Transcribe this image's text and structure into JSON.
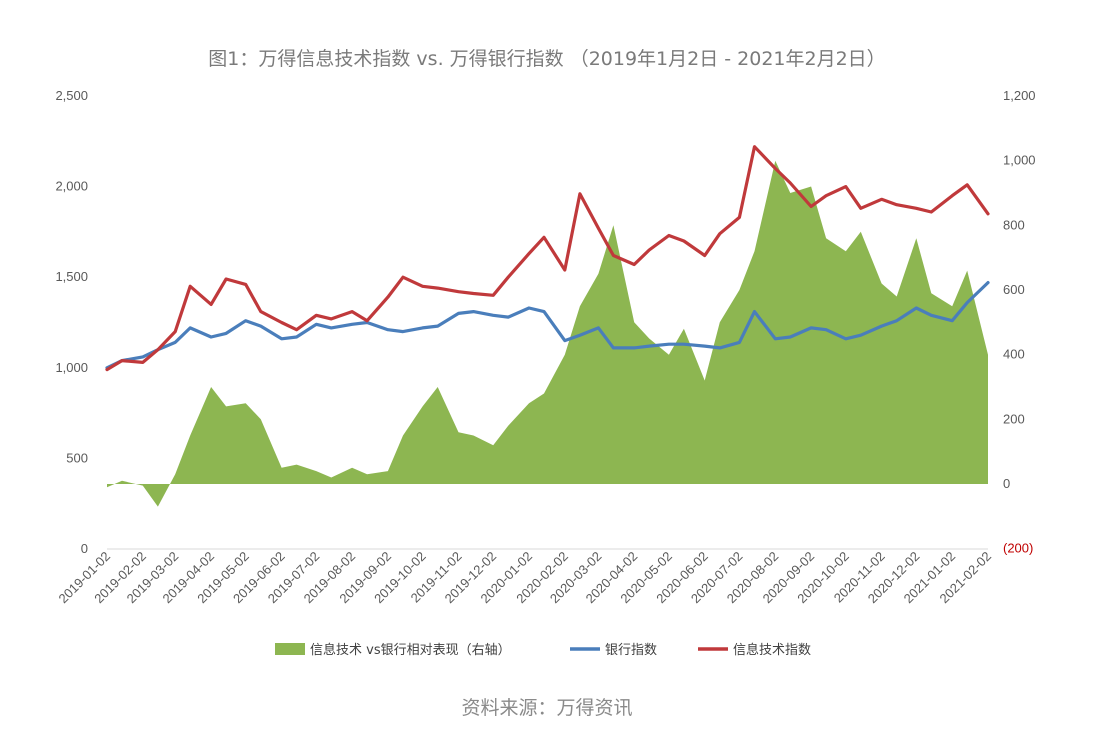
{
  "title": "图1：万得信息技术指数 vs. 万得银行指数 （2019年1月2日 - 2021年2月2日）",
  "source": "资料来源：万得资讯",
  "colors": {
    "it_index": "#c0393b",
    "bank_index": "#4a7ebb",
    "relative": "#8db651",
    "negative_tick": "#c00000"
  },
  "chart_data": {
    "type": "line",
    "title": "图1：万得信息技术指数 vs. 万得银行指数 （2019年1月2日 - 2021年2月2日）",
    "left_axis": {
      "range": [
        0,
        2500
      ],
      "ticks": [
        "0",
        "500",
        "1,000",
        "1,500",
        "2,000",
        "2,500"
      ]
    },
    "right_axis": {
      "range": [
        -200,
        1200
      ],
      "ticks": [
        "(200)",
        "0",
        "200",
        "400",
        "600",
        "800",
        "1,000",
        "1,200"
      ]
    },
    "grid": false,
    "legend_position": "bottom",
    "x": [
      "2019-01-02",
      "2019-02-02",
      "2019-03-02",
      "2019-04-02",
      "2019-05-02",
      "2019-06-02",
      "2019-07-02",
      "2019-08-02",
      "2019-09-02",
      "2019-10-02",
      "2019-11-02",
      "2019-12-02",
      "2020-01-02",
      "2020-02-02",
      "2020-03-02",
      "2020-04-02",
      "2020-05-02",
      "2020-06-02",
      "2020-07-02",
      "2020-08-02",
      "2020-09-02",
      "2020-10-02",
      "2020-11-02",
      "2020-12-02",
      "2021-01-02",
      "2021-02-02"
    ],
    "series": [
      {
        "name": "信息技术 vs银行相对表现（右轴）",
        "type": "area",
        "axis": "right",
        "x": [
          "2019-01-02",
          "2019-01-15",
          "2019-02-02",
          "2019-02-15",
          "2019-03-02",
          "2019-03-15",
          "2019-04-02",
          "2019-04-15",
          "2019-05-02",
          "2019-05-15",
          "2019-06-02",
          "2019-06-15",
          "2019-07-02",
          "2019-07-15",
          "2019-08-02",
          "2019-08-15",
          "2019-09-02",
          "2019-09-15",
          "2019-10-02",
          "2019-10-15",
          "2019-11-02",
          "2019-11-15",
          "2019-12-02",
          "2019-12-15",
          "2020-01-02",
          "2020-01-15",
          "2020-02-02",
          "2020-02-15",
          "2020-03-02",
          "2020-03-15",
          "2020-04-02",
          "2020-04-15",
          "2020-05-02",
          "2020-05-15",
          "2020-06-02",
          "2020-06-15",
          "2020-07-02",
          "2020-07-15",
          "2020-08-02",
          "2020-08-15",
          "2020-09-02",
          "2020-09-15",
          "2020-10-02",
          "2020-10-15",
          "2020-11-02",
          "2020-11-15",
          "2020-12-02",
          "2020-12-15",
          "2021-01-02",
          "2021-01-15",
          "2021-02-02"
        ],
        "values": [
          -10,
          10,
          -5,
          -70,
          30,
          150,
          300,
          240,
          250,
          200,
          50,
          60,
          40,
          20,
          50,
          30,
          40,
          150,
          240,
          300,
          160,
          150,
          120,
          180,
          250,
          280,
          400,
          550,
          650,
          800,
          500,
          450,
          400,
          480,
          320,
          500,
          600,
          720,
          1000,
          900,
          920,
          760,
          720,
          780,
          620,
          580,
          760,
          590,
          550,
          660,
          400
        ]
      },
      {
        "name": "银行指数",
        "type": "line",
        "axis": "left",
        "x": [
          "2019-01-02",
          "2019-01-15",
          "2019-02-02",
          "2019-02-15",
          "2019-03-02",
          "2019-03-15",
          "2019-04-02",
          "2019-04-15",
          "2019-05-02",
          "2019-05-15",
          "2019-06-02",
          "2019-06-15",
          "2019-07-02",
          "2019-07-15",
          "2019-08-02",
          "2019-08-15",
          "2019-09-02",
          "2019-09-15",
          "2019-10-02",
          "2019-10-15",
          "2019-11-02",
          "2019-11-15",
          "2019-12-02",
          "2019-12-15",
          "2020-01-02",
          "2020-01-15",
          "2020-02-02",
          "2020-02-15",
          "2020-03-02",
          "2020-03-15",
          "2020-04-02",
          "2020-04-15",
          "2020-05-02",
          "2020-05-15",
          "2020-06-02",
          "2020-06-15",
          "2020-07-02",
          "2020-07-15",
          "2020-08-02",
          "2020-08-15",
          "2020-09-02",
          "2020-09-15",
          "2020-10-02",
          "2020-10-15",
          "2020-11-02",
          "2020-11-15",
          "2020-12-02",
          "2020-12-15",
          "2021-01-02",
          "2021-01-15",
          "2021-02-02"
        ],
        "values": [
          1000,
          1040,
          1060,
          1100,
          1140,
          1220,
          1170,
          1190,
          1260,
          1230,
          1160,
          1170,
          1240,
          1220,
          1240,
          1250,
          1210,
          1200,
          1220,
          1230,
          1300,
          1310,
          1290,
          1280,
          1330,
          1310,
          1150,
          1180,
          1220,
          1110,
          1110,
          1120,
          1130,
          1130,
          1120,
          1110,
          1140,
          1310,
          1160,
          1170,
          1220,
          1210,
          1160,
          1180,
          1230,
          1260,
          1330,
          1290,
          1260,
          1360,
          1470
        ]
      },
      {
        "name": "信息技术指数",
        "type": "line",
        "axis": "left",
        "x": [
          "2019-01-02",
          "2019-01-15",
          "2019-02-02",
          "2019-02-15",
          "2019-03-02",
          "2019-03-15",
          "2019-04-02",
          "2019-04-15",
          "2019-05-02",
          "2019-05-15",
          "2019-06-02",
          "2019-06-15",
          "2019-07-02",
          "2019-07-15",
          "2019-08-02",
          "2019-08-15",
          "2019-09-02",
          "2019-09-15",
          "2019-10-02",
          "2019-10-15",
          "2019-11-02",
          "2019-11-15",
          "2019-12-02",
          "2019-12-15",
          "2020-01-02",
          "2020-01-15",
          "2020-02-02",
          "2020-02-15",
          "2020-03-02",
          "2020-03-15",
          "2020-04-02",
          "2020-04-15",
          "2020-05-02",
          "2020-05-15",
          "2020-06-02",
          "2020-06-15",
          "2020-07-02",
          "2020-07-15",
          "2020-08-02",
          "2020-08-15",
          "2020-09-02",
          "2020-09-15",
          "2020-10-02",
          "2020-10-15",
          "2020-11-02",
          "2020-11-15",
          "2020-12-02",
          "2020-12-15",
          "2021-01-02",
          "2021-01-15",
          "2021-02-02"
        ],
        "values": [
          990,
          1040,
          1030,
          1100,
          1200,
          1450,
          1350,
          1490,
          1460,
          1310,
          1250,
          1210,
          1290,
          1270,
          1310,
          1260,
          1390,
          1500,
          1450,
          1440,
          1420,
          1410,
          1400,
          1500,
          1630,
          1720,
          1540,
          1960,
          1770,
          1620,
          1570,
          1650,
          1730,
          1700,
          1620,
          1740,
          1830,
          2220,
          2100,
          2020,
          1890,
          1950,
          2000,
          1880,
          1930,
          1900,
          1880,
          1860,
          1950,
          2010,
          1850
        ]
      }
    ]
  }
}
